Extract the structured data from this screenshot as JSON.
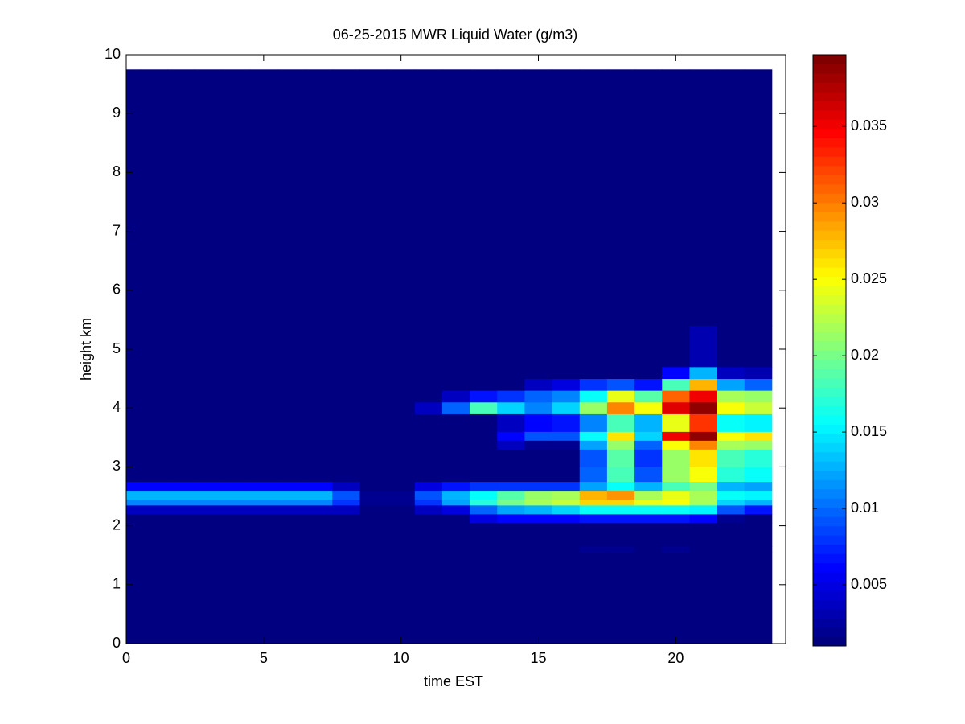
{
  "chart_data": {
    "type": "heatmap",
    "title": "06-25-2015 MWR Liquid Water (g/m3)",
    "x_label": "time EST",
    "y_label": "height km",
    "colormap": "jet",
    "xlim": [
      0,
      24
    ],
    "ylim": [
      0,
      10
    ],
    "xticks": [
      0,
      5,
      10,
      15,
      20
    ],
    "yticks": [
      0,
      1,
      2,
      3,
      4,
      5,
      6,
      7,
      8,
      9,
      10
    ],
    "clim": [
      0.001,
      0.0397
    ],
    "cticks": [
      0.005,
      0.01,
      0.015,
      0.02,
      0.025,
      0.03,
      0.035
    ],
    "x_bins": [
      0,
      0.5,
      1.5,
      2.5,
      3.5,
      4.5,
      5.5,
      6.5,
      7.5,
      8.5,
      9.5,
      10.5,
      11.5,
      12.5,
      13.5,
      14.5,
      15.5,
      16.5,
      17.5,
      18.5,
      19.5,
      20.5,
      21.5,
      22.5,
      23.5
    ],
    "y_bins": [
      0,
      1.55,
      1.65,
      2.05,
      2.2,
      2.35,
      2.45,
      2.6,
      2.75,
      3.0,
      3.3,
      3.45,
      3.6,
      3.9,
      4.1,
      4.3,
      4.5,
      4.7,
      5.4,
      9.75
    ],
    "z": [
      [
        0.001,
        0.001,
        0.001,
        0.001,
        0.001,
        0.001,
        0.001,
        0.001,
        0.001,
        0.001,
        0.001,
        0.001,
        0.001,
        0.001,
        0.001,
        0.001,
        0.001,
        0.001,
        0.001,
        0.001,
        0.001,
        0.001,
        0.001,
        0.001
      ],
      [
        0.001,
        0.001,
        0.001,
        0.001,
        0.001,
        0.001,
        0.001,
        0.001,
        0.001,
        0.001,
        0.001,
        0.001,
        0.001,
        0.001,
        0.001,
        0.001,
        0.001,
        0.002,
        0.002,
        0.001,
        0.002,
        0.001,
        0.001,
        0.001
      ],
      [
        0.001,
        0.001,
        0.001,
        0.001,
        0.001,
        0.001,
        0.001,
        0.001,
        0.001,
        0.001,
        0.001,
        0.001,
        0.001,
        0.001,
        0.001,
        0.001,
        0.001,
        0.001,
        0.001,
        0.001,
        0.001,
        0.001,
        0.001,
        0.001
      ],
      [
        0.001,
        0.001,
        0.001,
        0.001,
        0.001,
        0.001,
        0.001,
        0.001,
        0.001,
        0.001,
        0.001,
        0.001,
        0.001,
        0.005,
        0.006,
        0.006,
        0.006,
        0.007,
        0.007,
        0.007,
        0.007,
        0.006,
        0.002,
        0.001
      ],
      [
        0.004,
        0.004,
        0.004,
        0.004,
        0.004,
        0.004,
        0.004,
        0.004,
        0.004,
        0.001,
        0.001,
        0.004,
        0.005,
        0.01,
        0.012,
        0.013,
        0.014,
        0.016,
        0.016,
        0.016,
        0.016,
        0.015,
        0.009,
        0.007
      ],
      [
        0.011,
        0.011,
        0.011,
        0.011,
        0.011,
        0.011,
        0.011,
        0.011,
        0.008,
        0.002,
        0.002,
        0.008,
        0.012,
        0.017,
        0.02,
        0.022,
        0.023,
        0.027,
        0.027,
        0.024,
        0.025,
        0.022,
        0.014,
        0.013
      ],
      [
        0.013,
        0.013,
        0.013,
        0.013,
        0.013,
        0.013,
        0.013,
        0.013,
        0.009,
        0.002,
        0.002,
        0.009,
        0.013,
        0.016,
        0.019,
        0.021,
        0.022,
        0.028,
        0.029,
        0.022,
        0.024,
        0.022,
        0.016,
        0.015
      ],
      [
        0.006,
        0.006,
        0.006,
        0.006,
        0.006,
        0.006,
        0.006,
        0.006,
        0.004,
        0.001,
        0.001,
        0.005,
        0.007,
        0.008,
        0.008,
        0.008,
        0.008,
        0.012,
        0.016,
        0.013,
        0.018,
        0.02,
        0.013,
        0.012
      ],
      [
        0.001,
        0.001,
        0.001,
        0.001,
        0.001,
        0.001,
        0.001,
        0.001,
        0.001,
        0.001,
        0.001,
        0.001,
        0.001,
        0.001,
        0.001,
        0.001,
        0.001,
        0.01,
        0.018,
        0.009,
        0.021,
        0.025,
        0.017,
        0.016
      ],
      [
        0.001,
        0.001,
        0.001,
        0.001,
        0.001,
        0.001,
        0.001,
        0.001,
        0.001,
        0.001,
        0.001,
        0.001,
        0.001,
        0.001,
        0.001,
        0.001,
        0.001,
        0.009,
        0.019,
        0.008,
        0.021,
        0.026,
        0.018,
        0.017
      ],
      [
        0.001,
        0.001,
        0.001,
        0.001,
        0.001,
        0.001,
        0.001,
        0.001,
        0.001,
        0.001,
        0.001,
        0.001,
        0.001,
        0.001,
        0.004,
        0.002,
        0.002,
        0.012,
        0.021,
        0.01,
        0.025,
        0.03,
        0.022,
        0.021
      ],
      [
        0.001,
        0.001,
        0.001,
        0.001,
        0.001,
        0.001,
        0.001,
        0.001,
        0.001,
        0.001,
        0.001,
        0.001,
        0.001,
        0.001,
        0.006,
        0.009,
        0.009,
        0.016,
        0.026,
        0.014,
        0.035,
        0.039,
        0.025,
        0.026
      ],
      [
        0.001,
        0.001,
        0.001,
        0.001,
        0.001,
        0.001,
        0.001,
        0.001,
        0.001,
        0.001,
        0.001,
        0.001,
        0.001,
        0.001,
        0.004,
        0.006,
        0.007,
        0.011,
        0.018,
        0.013,
        0.024,
        0.033,
        0.016,
        0.015
      ],
      [
        0.001,
        0.001,
        0.001,
        0.001,
        0.001,
        0.001,
        0.001,
        0.001,
        0.001,
        0.001,
        0.001,
        0.004,
        0.01,
        0.018,
        0.014,
        0.011,
        0.014,
        0.021,
        0.03,
        0.025,
        0.036,
        0.039,
        0.025,
        0.023
      ],
      [
        0.001,
        0.001,
        0.001,
        0.001,
        0.001,
        0.001,
        0.001,
        0.001,
        0.001,
        0.001,
        0.001,
        0.001,
        0.004,
        0.007,
        0.008,
        0.01,
        0.011,
        0.016,
        0.024,
        0.019,
        0.031,
        0.035,
        0.022,
        0.021
      ],
      [
        0.001,
        0.001,
        0.001,
        0.001,
        0.001,
        0.001,
        0.001,
        0.001,
        0.001,
        0.001,
        0.001,
        0.001,
        0.001,
        0.001,
        0.001,
        0.004,
        0.005,
        0.008,
        0.009,
        0.007,
        0.018,
        0.028,
        0.012,
        0.01
      ],
      [
        0.001,
        0.001,
        0.001,
        0.001,
        0.001,
        0.001,
        0.001,
        0.001,
        0.001,
        0.001,
        0.001,
        0.001,
        0.001,
        0.001,
        0.001,
        0.001,
        0.001,
        0.001,
        0.001,
        0.001,
        0.006,
        0.013,
        0.004,
        0.003
      ],
      [
        0.001,
        0.001,
        0.001,
        0.001,
        0.001,
        0.001,
        0.001,
        0.001,
        0.001,
        0.001,
        0.001,
        0.001,
        0.001,
        0.001,
        0.001,
        0.001,
        0.001,
        0.001,
        0.001,
        0.001,
        0.001,
        0.003,
        0.001,
        0.001
      ],
      [
        0.001,
        0.001,
        0.001,
        0.001,
        0.001,
        0.001,
        0.001,
        0.001,
        0.001,
        0.001,
        0.001,
        0.001,
        0.001,
        0.001,
        0.001,
        0.001,
        0.001,
        0.001,
        0.001,
        0.001,
        0.001,
        0.001,
        0.001,
        0.001
      ]
    ]
  }
}
